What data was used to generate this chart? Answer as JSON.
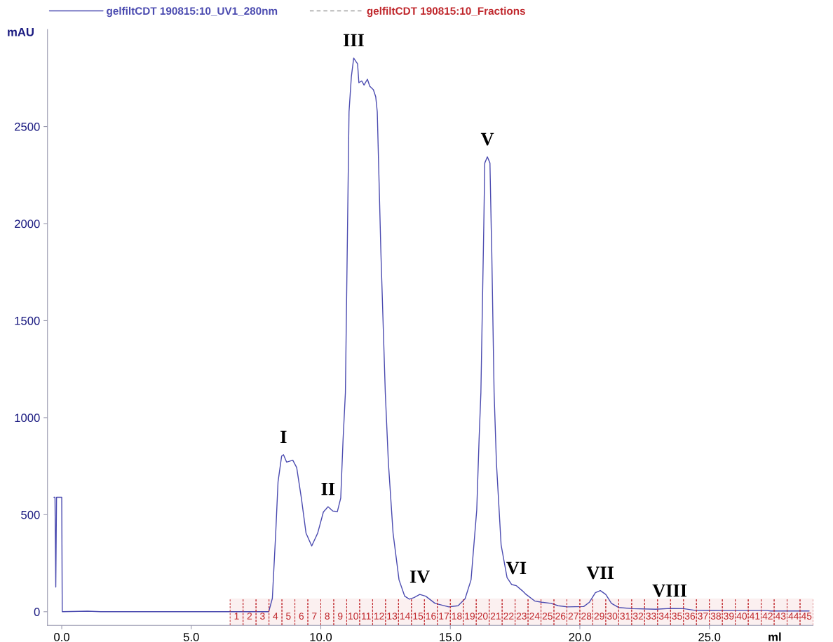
{
  "chart_data": {
    "type": "line",
    "xlabel": "ml",
    "ylabel": "mAU",
    "xlim": [
      -0.55,
      29.0
    ],
    "ylim": [
      -70,
      3000
    ],
    "xticks": [
      {
        "value": 0,
        "label": "0.0"
      },
      {
        "value": 5,
        "label": "5.0"
      },
      {
        "value": 10,
        "label": "10.0"
      },
      {
        "value": 15,
        "label": "15.0"
      },
      {
        "value": 20,
        "label": "20.0"
      },
      {
        "value": 25,
        "label": "25.0"
      }
    ],
    "yticks": [
      0,
      500,
      1000,
      1500,
      2000,
      2500
    ],
    "grid": false,
    "legend": "top left",
    "series": [
      {
        "name": "gelfiltCDT 190815:10_UV1_280nm",
        "color": "#4b4bb0",
        "x": [
          -0.3,
          -0.26,
          -0.23,
          -0.2,
          0.0,
          0.02,
          1.0,
          1.5,
          7.9,
          7.99,
          8.13,
          8.26,
          8.35,
          8.49,
          8.56,
          8.68,
          8.92,
          9.07,
          9.25,
          9.43,
          9.65,
          9.88,
          10.1,
          10.28,
          10.46,
          10.64,
          10.77,
          10.86,
          10.95,
          11.09,
          11.18,
          11.27,
          11.36,
          11.42,
          11.47,
          11.58,
          11.67,
          11.8,
          11.89,
          12.03,
          12.12,
          12.18,
          12.25,
          12.32,
          12.49,
          12.61,
          12.79,
          13.02,
          13.24,
          13.42,
          13.6,
          13.82,
          14.05,
          14.41,
          14.94,
          15.3,
          15.57,
          15.8,
          16.02,
          16.11,
          16.18,
          16.29,
          16.33,
          16.43,
          16.53,
          16.58,
          16.6,
          16.69,
          16.78,
          16.96,
          17.19,
          17.37,
          17.55,
          17.77,
          17.9,
          18.26,
          18.53,
          18.89,
          19.16,
          19.52,
          20.15,
          20.37,
          20.6,
          20.79,
          21.0,
          21.22,
          21.49,
          22.03,
          22.93,
          23.47,
          24.0,
          24.45,
          25.62,
          27.23,
          27.37,
          28.85
        ],
        "values": [
          590,
          590,
          127,
          590,
          590,
          0,
          3,
          0,
          0,
          0,
          69,
          405,
          670,
          803,
          809,
          771,
          781,
          743,
          586,
          405,
          339,
          405,
          514,
          541,
          519,
          516,
          586,
          887,
          1129,
          2576,
          2757,
          2853,
          2835,
          2823,
          2726,
          2735,
          2714,
          2744,
          2708,
          2690,
          2654,
          2576,
          2214,
          1852,
          1129,
          767,
          405,
          164,
          80,
          65,
          73,
          89,
          80,
          43,
          25,
          31,
          67,
          164,
          525,
          887,
          1129,
          1973,
          2312,
          2344,
          2312,
          1973,
          1852,
          1129,
          767,
          345,
          176,
          140,
          134,
          109,
          92,
          55,
          49,
          43,
          31,
          25,
          27,
          49,
          98,
          109,
          89,
          43,
          22,
          16,
          13,
          17,
          16,
          7,
          6,
          6,
          4,
          4
        ]
      }
    ],
    "bands": [
      {
        "axis": "x",
        "from": 6.5,
        "to": 7.0,
        "label": "1",
        "color": "#c0282d"
      },
      {
        "axis": "x",
        "from": 7.0,
        "to": 7.5,
        "label": "2",
        "color": "#c0282d"
      },
      {
        "axis": "x",
        "from": 7.5,
        "to": 8.0,
        "label": "3",
        "color": "#c0282d"
      },
      {
        "axis": "x",
        "from": 8.0,
        "to": 8.5,
        "label": "4",
        "color": "#c0282d"
      },
      {
        "axis": "x",
        "from": 8.5,
        "to": 9.0,
        "label": "5",
        "color": "#c0282d"
      },
      {
        "axis": "x",
        "from": 9.0,
        "to": 9.5,
        "label": "6",
        "color": "#c0282d"
      },
      {
        "axis": "x",
        "from": 9.5,
        "to": 10.0,
        "label": "7",
        "color": "#c0282d"
      },
      {
        "axis": "x",
        "from": 10.0,
        "to": 10.5,
        "label": "8",
        "color": "#c0282d"
      },
      {
        "axis": "x",
        "from": 10.5,
        "to": 11.0,
        "label": "9",
        "color": "#c0282d"
      },
      {
        "axis": "x",
        "from": 11.0,
        "to": 11.5,
        "label": "10",
        "color": "#c0282d"
      },
      {
        "axis": "x",
        "from": 11.5,
        "to": 12.0,
        "label": "11",
        "color": "#c0282d"
      },
      {
        "axis": "x",
        "from": 12.0,
        "to": 12.5,
        "label": "12",
        "color": "#c0282d"
      },
      {
        "axis": "x",
        "from": 12.5,
        "to": 13.0,
        "label": "13",
        "color": "#c0282d"
      },
      {
        "axis": "x",
        "from": 13.0,
        "to": 13.5,
        "label": "14",
        "color": "#c0282d"
      },
      {
        "axis": "x",
        "from": 13.5,
        "to": 14.0,
        "label": "15",
        "color": "#c0282d"
      },
      {
        "axis": "x",
        "from": 14.0,
        "to": 14.5,
        "label": "16",
        "color": "#c0282d"
      },
      {
        "axis": "x",
        "from": 14.5,
        "to": 15.0,
        "label": "17",
        "color": "#c0282d"
      },
      {
        "axis": "x",
        "from": 15.0,
        "to": 15.5,
        "label": "18",
        "color": "#c0282d"
      },
      {
        "axis": "x",
        "from": 15.5,
        "to": 16.0,
        "label": "19",
        "color": "#c0282d"
      },
      {
        "axis": "x",
        "from": 16.0,
        "to": 16.5,
        "label": "20",
        "color": "#c0282d"
      },
      {
        "axis": "x",
        "from": 16.5,
        "to": 17.0,
        "label": "21",
        "color": "#c0282d"
      },
      {
        "axis": "x",
        "from": 17.0,
        "to": 17.5,
        "label": "22",
        "color": "#c0282d"
      },
      {
        "axis": "x",
        "from": 17.5,
        "to": 18.0,
        "label": "23",
        "color": "#c0282d"
      },
      {
        "axis": "x",
        "from": 18.0,
        "to": 18.5,
        "label": "24",
        "color": "#c0282d"
      },
      {
        "axis": "x",
        "from": 18.5,
        "to": 19.0,
        "label": "25",
        "color": "#c0282d"
      },
      {
        "axis": "x",
        "from": 19.0,
        "to": 19.5,
        "label": "26",
        "color": "#c0282d"
      },
      {
        "axis": "x",
        "from": 19.5,
        "to": 20.0,
        "label": "27",
        "color": "#c0282d"
      },
      {
        "axis": "x",
        "from": 20.0,
        "to": 20.5,
        "label": "28",
        "color": "#c0282d"
      },
      {
        "axis": "x",
        "from": 20.5,
        "to": 21.0,
        "label": "29",
        "color": "#c0282d"
      },
      {
        "axis": "x",
        "from": 21.0,
        "to": 21.5,
        "label": "30",
        "color": "#c0282d"
      },
      {
        "axis": "x",
        "from": 21.5,
        "to": 22.0,
        "label": "31",
        "color": "#c0282d"
      },
      {
        "axis": "x",
        "from": 22.0,
        "to": 22.5,
        "label": "32",
        "color": "#c0282d"
      },
      {
        "axis": "x",
        "from": 22.5,
        "to": 23.0,
        "label": "33",
        "color": "#c0282d"
      },
      {
        "axis": "x",
        "from": 23.0,
        "to": 23.5,
        "label": "34",
        "color": "#c0282d"
      },
      {
        "axis": "x",
        "from": 23.5,
        "to": 24.0,
        "label": "35",
        "color": "#c0282d"
      },
      {
        "axis": "x",
        "from": 24.0,
        "to": 24.5,
        "label": "36",
        "color": "#c0282d"
      },
      {
        "axis": "x",
        "from": 24.5,
        "to": 25.0,
        "label": "37",
        "color": "#c0282d"
      },
      {
        "axis": "x",
        "from": 25.0,
        "to": 25.5,
        "label": "38",
        "color": "#c0282d"
      },
      {
        "axis": "x",
        "from": 25.5,
        "to": 26.0,
        "label": "39",
        "color": "#c0282d"
      },
      {
        "axis": "x",
        "from": 26.0,
        "to": 26.5,
        "label": "40",
        "color": "#c0282d"
      },
      {
        "axis": "x",
        "from": 26.5,
        "to": 27.0,
        "label": "41",
        "color": "#c0282d"
      },
      {
        "axis": "x",
        "from": 27.0,
        "to": 27.5,
        "label": "42",
        "color": "#c0282d"
      },
      {
        "axis": "x",
        "from": 27.5,
        "to": 28.0,
        "label": "43",
        "color": "#c0282d"
      },
      {
        "axis": "x",
        "from": 28.0,
        "to": 28.5,
        "label": "44",
        "color": "#c0282d"
      },
      {
        "axis": "x",
        "from": 28.5,
        "to": 29.0,
        "label": "45",
        "color": "#c0282d"
      }
    ],
    "annotations": [
      "gelfiltCDT 190815:10_Fractions",
      {
        "text": "I",
        "x": 8.56,
        "y": 809
      },
      {
        "text": "II",
        "x": 10.28,
        "y": 541
      },
      {
        "text": "III",
        "x": 11.27,
        "y": 2853
      },
      {
        "text": "IV",
        "x": 13.82,
        "y": 89
      },
      {
        "text": "V",
        "x": 16.43,
        "y": 2344
      },
      {
        "text": "VI",
        "x": 17.55,
        "y": 134
      },
      {
        "text": "VII",
        "x": 20.79,
        "y": 109
      },
      {
        "text": "VIII",
        "x": 23.47,
        "y": 17
      }
    ]
  }
}
